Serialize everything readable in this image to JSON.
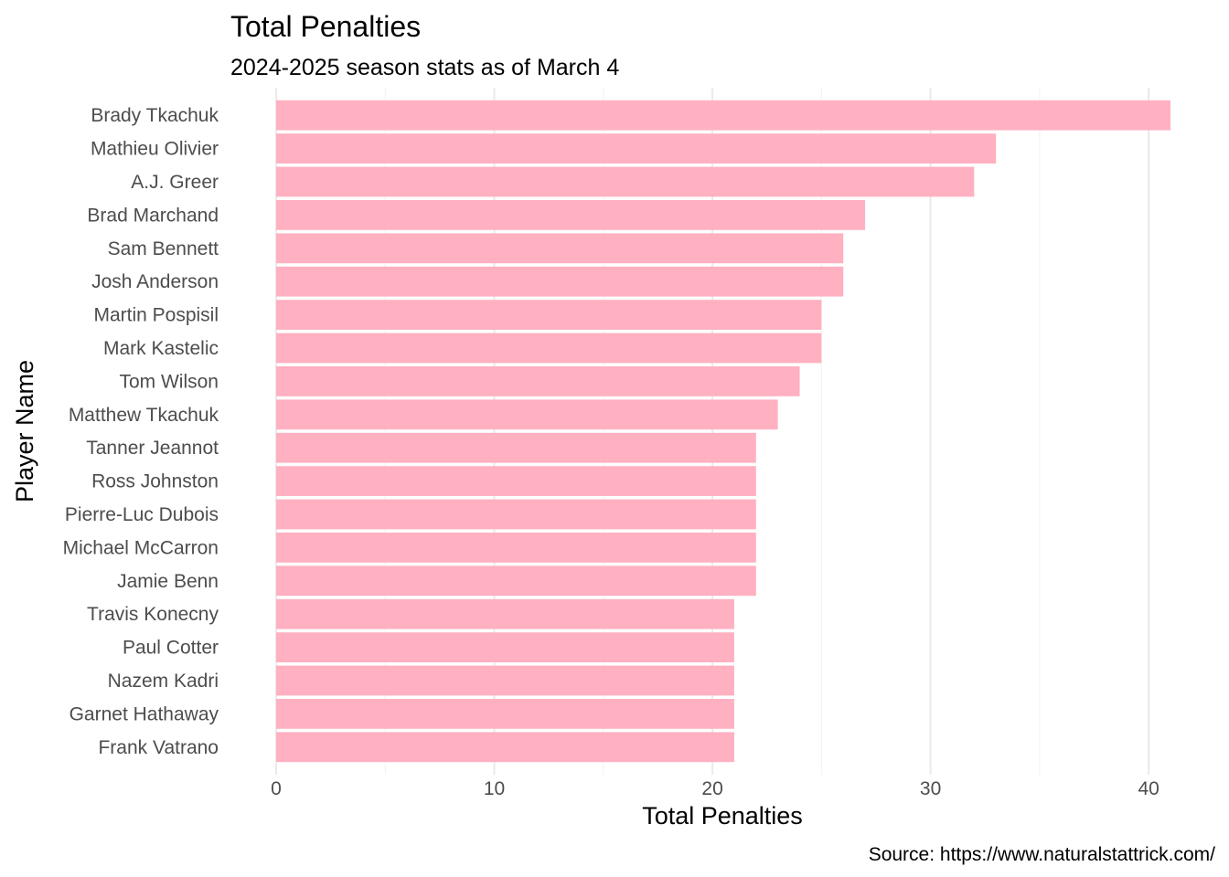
{
  "chart_data": {
    "type": "bar",
    "orientation": "horizontal",
    "title": "Total Penalties",
    "subtitle": "2024-2025 season stats as of March 4",
    "xlabel": "Total Penalties",
    "ylabel": "Player Name",
    "caption": "Source: https://www.naturalstattrick.com/",
    "xlim": [
      0,
      41
    ],
    "xticks": [
      0,
      10,
      20,
      30,
      40
    ],
    "grid": true,
    "legend": "none",
    "bar_color": "#ffb0c1",
    "categories": [
      "Brady Tkachuk",
      "Mathieu Olivier",
      "A.J. Greer",
      "Brad Marchand",
      "Sam Bennett",
      "Josh Anderson",
      "Martin Pospisil",
      "Mark Kastelic",
      "Tom Wilson",
      "Matthew Tkachuk",
      "Tanner Jeannot",
      "Ross Johnston",
      "Pierre-Luc Dubois",
      "Michael McCarron",
      "Jamie Benn",
      "Travis Konecny",
      "Paul Cotter",
      "Nazem Kadri",
      "Garnet Hathaway",
      "Frank Vatrano"
    ],
    "values": [
      41,
      33,
      32,
      27,
      26,
      26,
      25,
      25,
      24,
      23,
      22,
      22,
      22,
      22,
      22,
      21,
      21,
      21,
      21,
      21
    ]
  }
}
